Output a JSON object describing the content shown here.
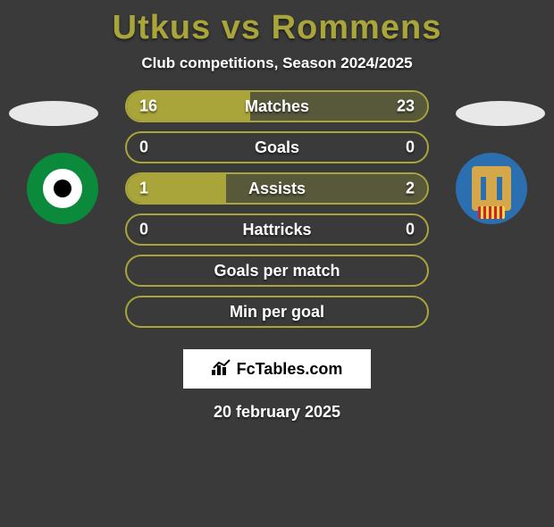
{
  "title_color": "#a9a53a",
  "title": "Utkus vs Rommens",
  "subtitle": "Club competitions, Season 2024/2025",
  "border_color": "#a9a53a",
  "fill_left_color": "#a9a53a",
  "fill_right_color": "#58583a",
  "background_color": "#3a3a3a",
  "bars": [
    {
      "label": "Matches",
      "left": "16",
      "right": "23",
      "left_pct": 41,
      "right_pct": 59
    },
    {
      "label": "Goals",
      "left": "0",
      "right": "0",
      "left_pct": 0,
      "right_pct": 0
    },
    {
      "label": "Assists",
      "left": "1",
      "right": "2",
      "left_pct": 33,
      "right_pct": 67
    },
    {
      "label": "Hattricks",
      "left": "0",
      "right": "0",
      "left_pct": 0,
      "right_pct": 0
    },
    {
      "label": "Goals per match",
      "left": "",
      "right": "",
      "left_pct": 0,
      "right_pct": 0
    },
    {
      "label": "Min per goal",
      "left": "",
      "right": "",
      "left_pct": 0,
      "right_pct": 0
    }
  ],
  "footer_brand": "FcTables.com",
  "date": "20 february 2025"
}
